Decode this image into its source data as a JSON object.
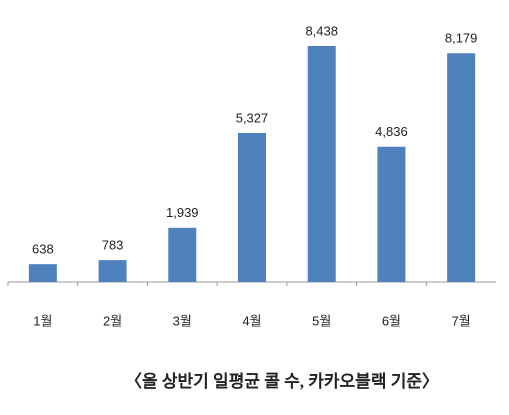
{
  "chart_data": {
    "type": "bar",
    "categories": [
      "1월",
      "2월",
      "3월",
      "4월",
      "5월",
      "6월",
      "7월"
    ],
    "values": [
      638,
      783,
      1939,
      5327,
      8438,
      4836,
      8179
    ],
    "value_labels": [
      "638",
      "783",
      "1,939",
      "5,327",
      "8,438",
      "4,836",
      "8,179"
    ],
    "color": "#4f81bd",
    "caption": "〈올 상반기 일평균 콜 수, 카카오블랙 기준〉"
  }
}
